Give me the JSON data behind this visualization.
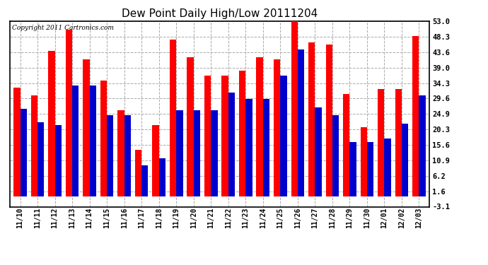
{
  "title": "Dew Point Daily High/Low 20111204",
  "copyright": "Copyright 2011 Cartronics.com",
  "categories": [
    "11/10",
    "11/11",
    "11/12",
    "11/13",
    "11/14",
    "11/15",
    "11/16",
    "11/17",
    "11/18",
    "11/19",
    "11/20",
    "11/21",
    "11/22",
    "11/23",
    "11/24",
    "11/25",
    "11/26",
    "11/27",
    "11/28",
    "11/29",
    "11/30",
    "12/01",
    "12/02",
    "12/03"
  ],
  "high_values": [
    33.0,
    30.5,
    44.0,
    50.5,
    41.5,
    35.0,
    26.0,
    14.0,
    21.5,
    47.5,
    42.0,
    36.5,
    36.5,
    38.0,
    42.0,
    41.5,
    53.0,
    46.5,
    46.0,
    31.0,
    21.0,
    32.5,
    32.5,
    48.5
  ],
  "low_values": [
    26.5,
    22.5,
    21.5,
    33.5,
    33.5,
    24.5,
    24.5,
    9.5,
    11.5,
    26.0,
    26.0,
    26.0,
    31.5,
    29.5,
    29.5,
    36.5,
    44.5,
    27.0,
    24.5,
    16.5,
    16.5,
    17.5,
    22.0,
    30.5
  ],
  "high_color": "#ff0000",
  "low_color": "#0000cc",
  "yticks": [
    -3.1,
    1.6,
    6.2,
    10.9,
    15.6,
    20.3,
    24.9,
    29.6,
    34.3,
    39.0,
    43.6,
    48.3,
    53.0
  ],
  "ylim": [
    -3.1,
    53.0
  ],
  "background_color": "#ffffff",
  "plot_bg_color": "#ffffff",
  "grid_color": "#aaaaaa",
  "title_fontsize": 11,
  "bar_width": 0.38,
  "fig_width": 6.9,
  "fig_height": 3.75,
  "fig_dpi": 100
}
